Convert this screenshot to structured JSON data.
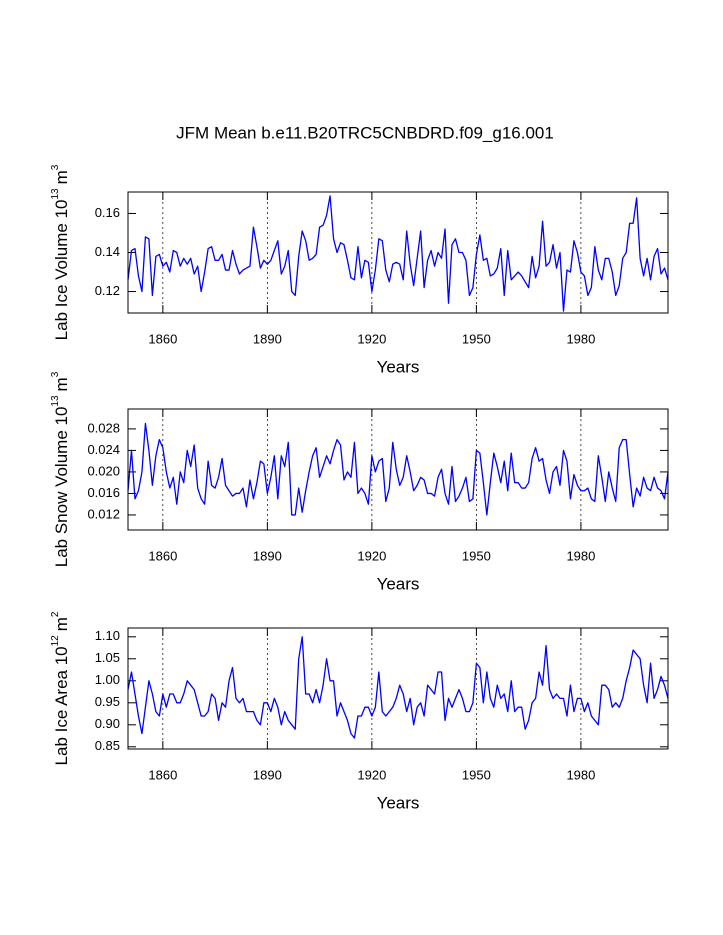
{
  "title": "JFM Mean b.e11.B20TRC5CNBDRD.f09_g16.001",
  "chart_data": [
    {
      "type": "line",
      "xlabel": "Years",
      "ylabel": [
        "Lab Ice Volume 10",
        "13",
        "m",
        "3"
      ],
      "xlim": [
        1850,
        2005
      ],
      "xticks": [
        1860,
        1890,
        1920,
        1950,
        1980
      ],
      "grid": true,
      "ylim": [
        0.109,
        0.171
      ],
      "yticks": [
        0.12,
        0.14,
        0.16
      ],
      "x": [
        1850,
        1851,
        1852,
        1853,
        1854,
        1855,
        1856,
        1857,
        1858,
        1859,
        1860,
        1861,
        1862,
        1863,
        1864,
        1865,
        1866,
        1867,
        1868,
        1869,
        1870,
        1871,
        1872,
        1873,
        1874,
        1875,
        1876,
        1877,
        1878,
        1879,
        1880,
        1881,
        1882,
        1883,
        1884,
        1885,
        1886,
        1887,
        1888,
        1889,
        1890,
        1891,
        1892,
        1893,
        1894,
        1895,
        1896,
        1897,
        1898,
        1899,
        1900,
        1901,
        1902,
        1903,
        1904,
        1905,
        1906,
        1907,
        1908,
        1909,
        1910,
        1911,
        1912,
        1913,
        1914,
        1915,
        1916,
        1917,
        1918,
        1919,
        1920,
        1921,
        1922,
        1923,
        1924,
        1925,
        1926,
        1927,
        1928,
        1929,
        1930,
        1931,
        1932,
        1933,
        1934,
        1935,
        1936,
        1937,
        1938,
        1939,
        1940,
        1941,
        1942,
        1943,
        1944,
        1945,
        1946,
        1947,
        1948,
        1949,
        1950,
        1951,
        1952,
        1953,
        1954,
        1955,
        1956,
        1957,
        1958,
        1959,
        1960,
        1961,
        1962,
        1963,
        1964,
        1965,
        1966,
        1967,
        1968,
        1969,
        1970,
        1971,
        1972,
        1973,
        1974,
        1975,
        1976,
        1977,
        1978,
        1979,
        1980,
        1981,
        1982,
        1983,
        1984,
        1985,
        1986,
        1987,
        1988,
        1989,
        1990,
        1991,
        1992,
        1993,
        1994,
        1995,
        1996,
        1997,
        1998,
        1999,
        2000,
        2001,
        2002,
        2003,
        2004,
        2005
      ],
      "series": [
        {
          "color": "#0000ff",
          "values": [
            0.126,
            0.141,
            0.142,
            0.128,
            0.12,
            0.148,
            0.147,
            0.118,
            0.138,
            0.139,
            0.133,
            0.135,
            0.13,
            0.141,
            0.14,
            0.133,
            0.137,
            0.134,
            0.137,
            0.129,
            0.133,
            0.12,
            0.13,
            0.142,
            0.143,
            0.136,
            0.136,
            0.139,
            0.131,
            0.131,
            0.141,
            0.134,
            0.129,
            0.131,
            0.132,
            0.133,
            0.153,
            0.143,
            0.132,
            0.136,
            0.134,
            0.136,
            0.141,
            0.146,
            0.129,
            0.133,
            0.141,
            0.12,
            0.118,
            0.138,
            0.151,
            0.146,
            0.136,
            0.137,
            0.139,
            0.153,
            0.154,
            0.159,
            0.169,
            0.147,
            0.14,
            0.145,
            0.144,
            0.136,
            0.127,
            0.126,
            0.143,
            0.127,
            0.136,
            0.135,
            0.12,
            0.131,
            0.147,
            0.146,
            0.131,
            0.125,
            0.134,
            0.135,
            0.134,
            0.126,
            0.151,
            0.134,
            0.123,
            0.137,
            0.151,
            0.122,
            0.136,
            0.141,
            0.133,
            0.14,
            0.137,
            0.152,
            0.114,
            0.144,
            0.147,
            0.14,
            0.14,
            0.136,
            0.118,
            0.122,
            0.139,
            0.149,
            0.136,
            0.137,
            0.128,
            0.129,
            0.132,
            0.142,
            0.118,
            0.141,
            0.126,
            0.128,
            0.13,
            0.128,
            0.125,
            0.122,
            0.138,
            0.127,
            0.133,
            0.156,
            0.133,
            0.135,
            0.144,
            0.132,
            0.14,
            0.11,
            0.131,
            0.13,
            0.146,
            0.14,
            0.13,
            0.128,
            0.118,
            0.122,
            0.143,
            0.131,
            0.126,
            0.137,
            0.137,
            0.13,
            0.118,
            0.123,
            0.137,
            0.14,
            0.155,
            0.155,
            0.168,
            0.137,
            0.128,
            0.137,
            0.126,
            0.138,
            0.142,
            0.129,
            0.132,
            0.126
          ]
        }
      ]
    },
    {
      "type": "line",
      "xlabel": "Years",
      "ylabel": [
        "Lab Snow Volume 10",
        "13",
        "m",
        "3"
      ],
      "xlim": [
        1850,
        2005
      ],
      "xticks": [
        1860,
        1890,
        1920,
        1950,
        1980
      ],
      "grid": true,
      "ylim": [
        0.0092,
        0.0317
      ],
      "yticks": [
        0.012,
        0.016,
        {
          "value": 0.02,
          "label": "0.020"
        },
        0.024,
        0.028
      ],
      "x": [
        1850,
        1851,
        1852,
        1853,
        1854,
        1855,
        1856,
        1857,
        1858,
        1859,
        1860,
        1861,
        1862,
        1863,
        1864,
        1865,
        1866,
        1867,
        1868,
        1869,
        1870,
        1871,
        1872,
        1873,
        1874,
        1875,
        1876,
        1877,
        1878,
        1879,
        1880,
        1881,
        1882,
        1883,
        1884,
        1885,
        1886,
        1887,
        1888,
        1889,
        1890,
        1891,
        1892,
        1893,
        1894,
        1895,
        1896,
        1897,
        1898,
        1899,
        1900,
        1901,
        1902,
        1903,
        1904,
        1905,
        1906,
        1907,
        1908,
        1909,
        1910,
        1911,
        1912,
        1913,
        1914,
        1915,
        1916,
        1917,
        1918,
        1919,
        1920,
        1921,
        1922,
        1923,
        1924,
        1925,
        1926,
        1927,
        1928,
        1929,
        1930,
        1931,
        1932,
        1933,
        1934,
        1935,
        1936,
        1937,
        1938,
        1939,
        1940,
        1941,
        1942,
        1943,
        1944,
        1945,
        1946,
        1947,
        1948,
        1949,
        1950,
        1951,
        1952,
        1953,
        1954,
        1955,
        1956,
        1957,
        1958,
        1959,
        1960,
        1961,
        1962,
        1963,
        1964,
        1965,
        1966,
        1967,
        1968,
        1969,
        1970,
        1971,
        1972,
        1973,
        1974,
        1975,
        1976,
        1977,
        1978,
        1979,
        1980,
        1981,
        1982,
        1983,
        1984,
        1985,
        1986,
        1987,
        1988,
        1989,
        1990,
        1991,
        1992,
        1993,
        1994,
        1995,
        1996,
        1997,
        1998,
        1999,
        2000,
        2001,
        2002,
        2003,
        2004,
        2005
      ],
      "series": [
        {
          "color": "#0000ff",
          "values": [
            0.0165,
            0.024,
            0.015,
            0.0165,
            0.02,
            0.029,
            0.024,
            0.0175,
            0.023,
            0.026,
            0.0245,
            0.02,
            0.017,
            0.019,
            0.014,
            0.02,
            0.018,
            0.024,
            0.021,
            0.025,
            0.017,
            0.015,
            0.014,
            0.022,
            0.0175,
            0.017,
            0.019,
            0.0225,
            0.0175,
            0.0165,
            0.0155,
            0.016,
            0.016,
            0.017,
            0.0135,
            0.0185,
            0.015,
            0.018,
            0.022,
            0.0215,
            0.016,
            0.019,
            0.023,
            0.015,
            0.023,
            0.021,
            0.0255,
            0.012,
            0.012,
            0.017,
            0.0125,
            0.0165,
            0.02,
            0.023,
            0.0245,
            0.019,
            0.021,
            0.023,
            0.0215,
            0.024,
            0.026,
            0.025,
            0.0185,
            0.02,
            0.019,
            0.0255,
            0.016,
            0.017,
            0.016,
            0.014,
            0.023,
            0.02,
            0.022,
            0.0225,
            0.0145,
            0.017,
            0.0255,
            0.0205,
            0.0175,
            0.019,
            0.023,
            0.02,
            0.0165,
            0.0175,
            0.019,
            0.0185,
            0.016,
            0.016,
            0.0155,
            0.019,
            0.0205,
            0.016,
            0.014,
            0.021,
            0.0145,
            0.0155,
            0.017,
            0.019,
            0.0145,
            0.015,
            0.024,
            0.0235,
            0.018,
            0.012,
            0.018,
            0.0235,
            0.021,
            0.018,
            0.022,
            0.0165,
            0.0235,
            0.018,
            0.018,
            0.017,
            0.017,
            0.018,
            0.0225,
            0.0245,
            0.022,
            0.0225,
            0.0185,
            0.016,
            0.02,
            0.021,
            0.0175,
            0.024,
            0.022,
            0.015,
            0.0195,
            0.0175,
            0.0165,
            0.0165,
            0.017,
            0.015,
            0.0145,
            0.023,
            0.019,
            0.0145,
            0.02,
            0.017,
            0.0145,
            0.0245,
            0.026,
            0.026,
            0.0195,
            0.0135,
            0.017,
            0.0155,
            0.019,
            0.017,
            0.0165,
            0.019,
            0.017,
            0.0165,
            0.015,
            0.02
          ]
        }
      ]
    },
    {
      "type": "line",
      "xlabel": "Years",
      "ylabel": [
        "Lab Ice Area 10",
        "12",
        "m",
        "2"
      ],
      "xlim": [
        1850,
        2005
      ],
      "xticks": [
        1860,
        1890,
        1920,
        1950,
        1980
      ],
      "grid": true,
      "ylim": [
        0.845,
        1.12
      ],
      "yticks": [
        0.85,
        {
          "value": 0.9,
          "label": "0.90"
        },
        0.95,
        {
          "value": 1.0,
          "label": "1.00"
        },
        1.05,
        {
          "value": 1.1,
          "label": "1.10"
        }
      ],
      "x": [
        1850,
        1851,
        1852,
        1853,
        1854,
        1855,
        1856,
        1857,
        1858,
        1859,
        1860,
        1861,
        1862,
        1863,
        1864,
        1865,
        1866,
        1867,
        1868,
        1869,
        1870,
        1871,
        1872,
        1873,
        1874,
        1875,
        1876,
        1877,
        1878,
        1879,
        1880,
        1881,
        1882,
        1883,
        1884,
        1885,
        1886,
        1887,
        1888,
        1889,
        1890,
        1891,
        1892,
        1893,
        1894,
        1895,
        1896,
        1897,
        1898,
        1899,
        1900,
        1901,
        1902,
        1903,
        1904,
        1905,
        1906,
        1907,
        1908,
        1909,
        1910,
        1911,
        1912,
        1913,
        1914,
        1915,
        1916,
        1917,
        1918,
        1919,
        1920,
        1921,
        1922,
        1923,
        1924,
        1925,
        1926,
        1927,
        1928,
        1929,
        1930,
        1931,
        1932,
        1933,
        1934,
        1935,
        1936,
        1937,
        1938,
        1939,
        1940,
        1941,
        1942,
        1943,
        1944,
        1945,
        1946,
        1947,
        1948,
        1949,
        1950,
        1951,
        1952,
        1953,
        1954,
        1955,
        1956,
        1957,
        1958,
        1959,
        1960,
        1961,
        1962,
        1963,
        1964,
        1965,
        1966,
        1967,
        1968,
        1969,
        1970,
        1971,
        1972,
        1973,
        1974,
        1975,
        1976,
        1977,
        1978,
        1979,
        1980,
        1981,
        1982,
        1983,
        1984,
        1985,
        1986,
        1987,
        1988,
        1989,
        1990,
        1991,
        1992,
        1993,
        1994,
        1995,
        1996,
        1997,
        1998,
        1999,
        2000,
        2001,
        2002,
        2003,
        2004,
        2005
      ],
      "series": [
        {
          "color": "#0000ff",
          "values": [
            0.98,
            1.02,
            0.97,
            0.92,
            0.88,
            0.94,
            1.0,
            0.97,
            0.93,
            0.92,
            0.97,
            0.94,
            0.97,
            0.97,
            0.95,
            0.95,
            0.97,
            1.0,
            0.99,
            0.98,
            0.95,
            0.92,
            0.92,
            0.93,
            0.97,
            0.96,
            0.91,
            0.95,
            0.94,
            1.0,
            1.03,
            0.96,
            0.95,
            0.96,
            0.93,
            0.93,
            0.93,
            0.91,
            0.9,
            0.95,
            0.95,
            0.93,
            0.96,
            0.94,
            0.9,
            0.93,
            0.91,
            0.9,
            0.89,
            1.05,
            1.1,
            0.97,
            0.97,
            0.95,
            0.98,
            0.95,
            0.99,
            1.05,
            1.0,
            1.0,
            0.92,
            0.95,
            0.93,
            0.91,
            0.88,
            0.87,
            0.92,
            0.92,
            0.94,
            0.94,
            0.92,
            0.94,
            1.02,
            0.93,
            0.92,
            0.93,
            0.94,
            0.96,
            0.99,
            0.97,
            0.93,
            0.96,
            0.9,
            0.94,
            0.95,
            0.92,
            0.99,
            0.98,
            0.97,
            1.02,
            1.02,
            0.91,
            0.96,
            0.94,
            0.96,
            0.98,
            0.96,
            0.93,
            0.93,
            0.95,
            1.04,
            1.03,
            0.95,
            1.02,
            0.96,
            0.94,
            0.99,
            0.96,
            0.97,
            0.93,
            1.0,
            0.93,
            0.94,
            0.94,
            0.89,
            0.91,
            0.95,
            0.96,
            1.02,
            0.99,
            1.08,
            0.98,
            0.96,
            0.97,
            0.96,
            0.96,
            0.92,
            0.99,
            0.93,
            0.96,
            0.96,
            0.93,
            0.95,
            0.92,
            0.91,
            0.9,
            0.99,
            0.99,
            0.98,
            0.94,
            0.95,
            0.94,
            0.96,
            1.0,
            1.03,
            1.07,
            1.06,
            1.05,
            0.99,
            0.95,
            1.04,
            0.96,
            0.98,
            1.01,
            0.99,
            0.96
          ]
        }
      ]
    }
  ]
}
